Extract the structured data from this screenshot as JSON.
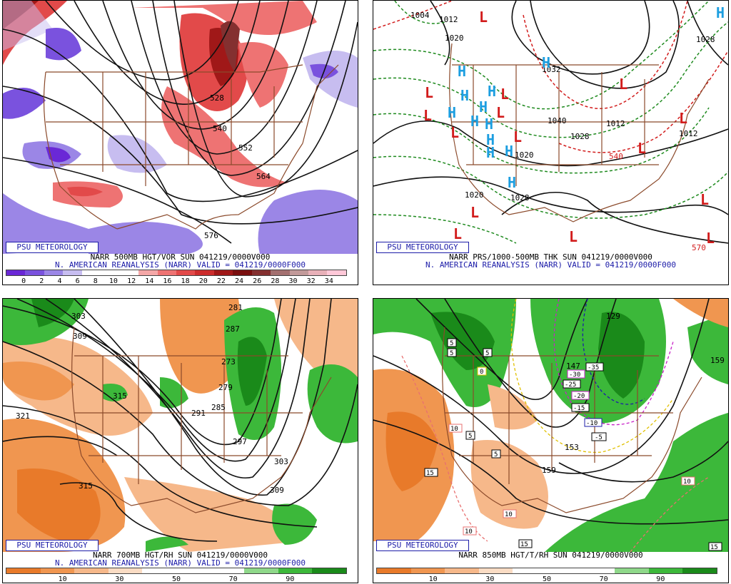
{
  "common": {
    "psu_label": "PSU METEOROLOGY"
  },
  "panels": [
    {
      "title_line1": "NARR 500MB HGT/VOR SUN 041219/0000V000",
      "title_line2": "N. AMERICAN REANALYSIS (NARR) VALID = 041219/0000F000",
      "colorbar": {
        "colors": [
          "#6a28d6",
          "#7a52de",
          "#9b86e6",
          "#c7bdf0",
          "#ffffff",
          "#ffffff",
          "#ffffff",
          "#f4a7a7",
          "#ee7373",
          "#e24a4a",
          "#cc2d2d",
          "#a01818",
          "#7a0f0f",
          "#843030",
          "#a37070",
          "#c29a9a",
          "#e8b0b8",
          "#ffc8d8"
        ],
        "tick_labels": [
          "0",
          "2",
          "4",
          "6",
          "8",
          "10",
          "12",
          "14",
          "16",
          "18",
          "20",
          "22",
          "24",
          "26",
          "28",
          "30",
          "32",
          "34"
        ]
      },
      "contour_labels": [
        "528",
        "540",
        "552",
        "564",
        "576"
      ]
    },
    {
      "title_line1": "NARR PRS/1000-500MB THK SUN 041219/0000V000",
      "title_line2": "N. AMERICAN REANALYSIS (NARR) VALID = 041219/0000F000",
      "contour_labels": [
        "1004",
        "1012",
        "1020",
        "1028",
        "1032",
        "1040",
        "1028",
        "1020",
        "1012",
        "1020",
        "1028",
        "1012",
        "540",
        "570"
      ],
      "high_symbol": "H",
      "low_symbol": "L"
    },
    {
      "title_line1": "NARR 700MB HGT/RH SUN 041219/0000V000",
      "title_line2": "N. AMERICAN REANALYSIS (NARR) VALID = 041219/0000F000",
      "colorbar": {
        "colors": [
          "#e87a2a",
          "#f09650",
          "#f6b88a",
          "#fadcc4",
          "#ffffff",
          "#ffffff",
          "#ffffff",
          "#8fd88a",
          "#3cb83a",
          "#1a8a1a"
        ],
        "tick_labels": [
          "10",
          "30",
          "50",
          "70",
          "90"
        ]
      },
      "contour_labels": [
        "281",
        "287",
        "273",
        "279",
        "285",
        "291",
        "297",
        "303",
        "309",
        "315",
        "321",
        "309",
        "303",
        "315"
      ]
    },
    {
      "title_line1": "NARR 850MB HGT/T/RH SUN 041219/0000V000",
      "title_line2": "",
      "colorbar": {
        "colors": [
          "#e87a2a",
          "#f09650",
          "#f6b88a",
          "#fadcc4",
          "#ffffff",
          "#ffffff",
          "#ffffff",
          "#8fd88a",
          "#3cb83a",
          "#1a8a1a"
        ],
        "tick_labels": [
          "10",
          "30",
          "50",
          "70",
          "90"
        ]
      },
      "contour_labels": [
        "129",
        "147",
        "153",
        "159",
        "159"
      ],
      "temp_labels": [
        "-35",
        "-30",
        "-25",
        "-20",
        "-15",
        "-10",
        "-5",
        "0",
        "5",
        "5",
        "5",
        "5",
        "5",
        "10",
        "10",
        "10",
        "10",
        "15",
        "15",
        "15"
      ]
    }
  ]
}
